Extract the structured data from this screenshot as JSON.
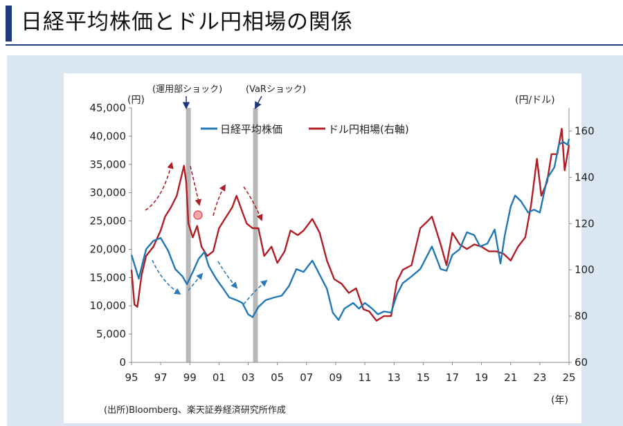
{
  "title": "日経平均株価とドル円相場の関係",
  "colors": {
    "nikkei": "#1f77b4",
    "usdjpy": "#b01d24",
    "shade": "#b8b8b8",
    "accent": "#1f3a7a"
  },
  "chart_data": {
    "type": "line",
    "title": "",
    "yaxis_left": {
      "unit_label": "(円)",
      "range": [
        0,
        45000
      ],
      "ticks": [
        "0",
        "5,000",
        "10,000",
        "15,000",
        "20,000",
        "25,000",
        "30,000",
        "35,000",
        "40,000",
        "45,000"
      ]
    },
    "yaxis_right": {
      "unit_label": "(円/ドル)",
      "range": [
        60,
        170
      ],
      "ticks": [
        "60",
        "80",
        "100",
        "120",
        "140",
        "160"
      ]
    },
    "xaxis": {
      "unit_label": "(年)",
      "range": [
        1995,
        2025
      ],
      "ticks": [
        "95",
        "97",
        "99",
        "01",
        "03",
        "05",
        "07",
        "09",
        "11",
        "13",
        "15",
        "17",
        "19",
        "21",
        "23",
        "25"
      ]
    },
    "legend": {
      "position": "top-center",
      "entries": [
        "日経平均株価",
        "ドル円相場(右軸)"
      ]
    },
    "events": [
      {
        "label": "(運用部ショック)",
        "x": 1998.9
      },
      {
        "label": "(VaRショック)",
        "x": 2003.5
      }
    ],
    "source": "(出所)Bloomberg、楽天証券経済研究所作成",
    "series": [
      {
        "name": "日経平均株価",
        "axis": "left",
        "x": [
          1995.0,
          1995.3,
          1995.5,
          1995.8,
          1996.0,
          1996.5,
          1997.0,
          1997.5,
          1998.0,
          1998.5,
          1998.8,
          1999.2,
          1999.6,
          2000.0,
          2000.3,
          2000.8,
          2001.3,
          2001.7,
          2002.2,
          2002.6,
          2003.0,
          2003.3,
          2003.7,
          2004.2,
          2004.8,
          2005.3,
          2005.8,
          2006.3,
          2006.8,
          2007.4,
          2007.9,
          2008.4,
          2008.8,
          2009.2,
          2009.6,
          2010.2,
          2010.6,
          2011.0,
          2011.5,
          2011.9,
          2012.3,
          2012.8,
          2013.2,
          2013.6,
          2014.2,
          2014.8,
          2015.3,
          2015.6,
          2016.2,
          2016.6,
          2017.0,
          2017.5,
          2018.0,
          2018.5,
          2018.9,
          2019.4,
          2019.9,
          2020.3,
          2020.6,
          2021.0,
          2021.3,
          2021.7,
          2022.2,
          2022.6,
          2023.0,
          2023.5,
          2024.0,
          2024.3,
          2024.6,
          2024.9,
          2025.0
        ],
        "values": [
          19000,
          16500,
          14800,
          18000,
          20000,
          21500,
          22000,
          19800,
          16500,
          15200,
          13800,
          16000,
          18300,
          19500,
          17000,
          14800,
          13000,
          11500,
          11000,
          10500,
          8500,
          8000,
          9800,
          11000,
          11500,
          11800,
          13500,
          16500,
          16000,
          18000,
          15500,
          13000,
          8800,
          7500,
          9500,
          10500,
          9500,
          10500,
          9500,
          8500,
          9000,
          8800,
          12000,
          14000,
          15200,
          16500,
          19000,
          20500,
          16500,
          16200,
          19000,
          20000,
          23000,
          22500,
          20500,
          21000,
          23500,
          17500,
          22500,
          27500,
          29500,
          28500,
          26500,
          27000,
          26500,
          32500,
          34500,
          38500,
          39000,
          38500,
          39500
        ]
      },
      {
        "name": "ドル円相場(右軸)",
        "axis": "right",
        "x": [
          1995.0,
          1995.2,
          1995.4,
          1995.7,
          1996.0,
          1996.5,
          1997.0,
          1997.3,
          1997.7,
          1998.1,
          1998.6,
          1998.75,
          1998.9,
          1999.2,
          1999.5,
          1999.8,
          2000.2,
          2000.6,
          2001.0,
          2001.4,
          2001.9,
          2002.2,
          2002.6,
          2002.9,
          2003.3,
          2003.7,
          2004.1,
          2004.6,
          2005.0,
          2005.5,
          2005.9,
          2006.4,
          2006.8,
          2007.4,
          2007.9,
          2008.4,
          2008.9,
          2009.4,
          2009.9,
          2010.4,
          2010.9,
          2011.3,
          2011.8,
          2012.3,
          2012.8,
          2013.2,
          2013.6,
          2014.2,
          2014.8,
          2015.3,
          2015.6,
          2016.2,
          2016.6,
          2017.0,
          2017.5,
          2018.0,
          2018.5,
          2019.0,
          2019.5,
          2020.0,
          2020.5,
          2021.0,
          2021.5,
          2022.0,
          2022.4,
          2022.8,
          2023.1,
          2023.5,
          2023.8,
          2024.2,
          2024.5,
          2024.7,
          2025.0
        ],
        "values": [
          100,
          85,
          84,
          98,
          106,
          110,
          117,
          123,
          127,
          132,
          145,
          138,
          120,
          114,
          119,
          110,
          106,
          108,
          118,
          122,
          127,
          132,
          125,
          120,
          118,
          118,
          106,
          110,
          103,
          108,
          117,
          115,
          117,
          122,
          116,
          104,
          96,
          94,
          90,
          92,
          83,
          82,
          78,
          80,
          80,
          95,
          100,
          102,
          118,
          121,
          123,
          111,
          102,
          116,
          111,
          109,
          111,
          110,
          108,
          108,
          107,
          104,
          110,
          114,
          128,
          148,
          132,
          138,
          150,
          150,
          161,
          143,
          154
        ]
      }
    ]
  }
}
